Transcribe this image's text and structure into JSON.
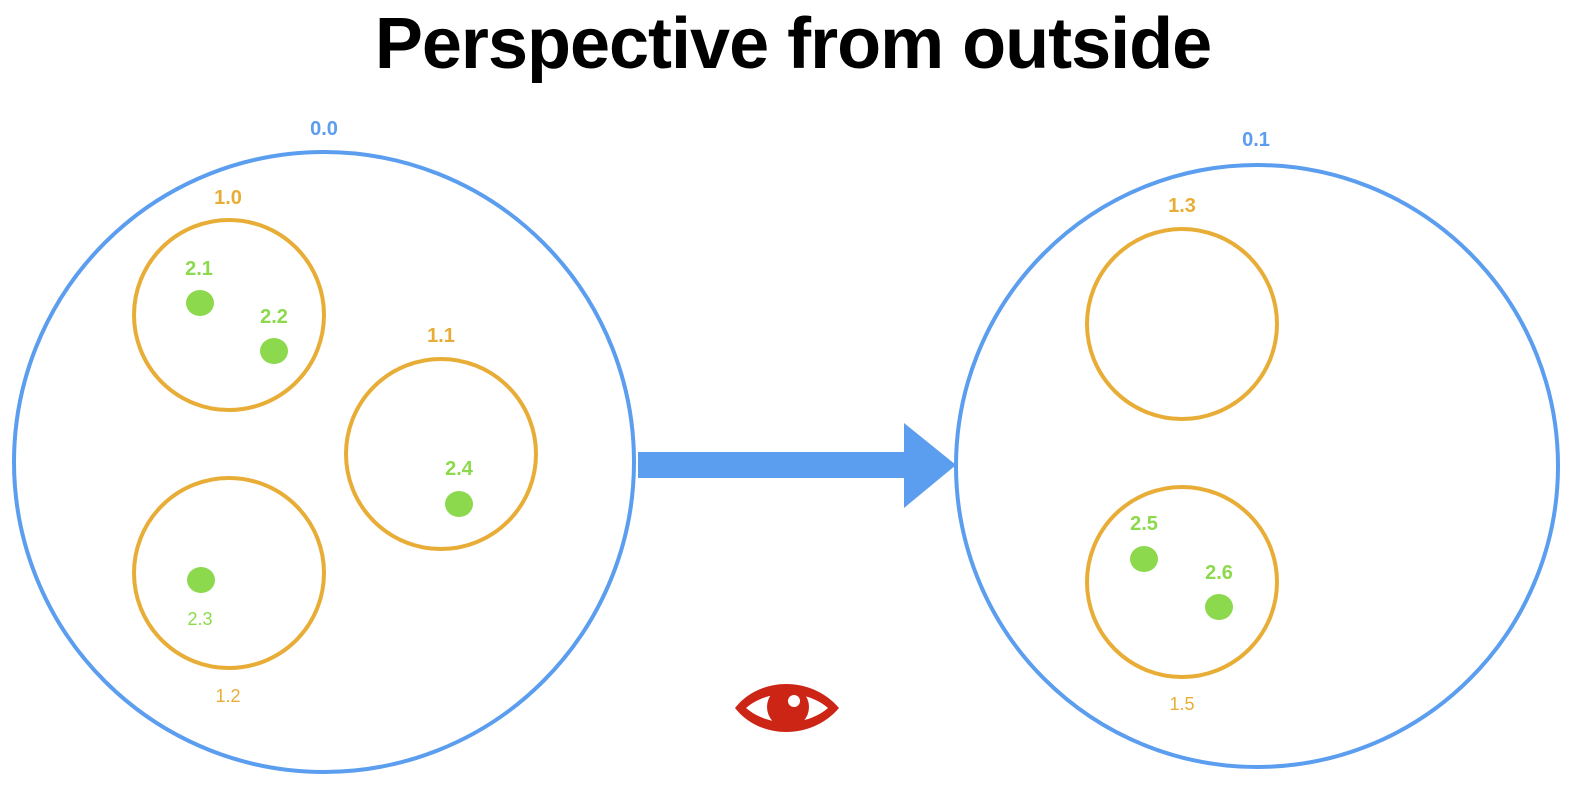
{
  "title": "Perspective from outside",
  "colors": {
    "level0": "#5B9DEE",
    "level1": "#E8AD37",
    "level2": "#8DD94E",
    "arrow": "#5B9DEE",
    "eye": "#CC2516",
    "text": "#000000"
  },
  "before": {
    "label": "0.0",
    "groups": [
      {
        "label": "1.0",
        "members": [
          "2.1",
          "2.2"
        ]
      },
      {
        "label": "1.1",
        "members": [
          "2.4"
        ]
      },
      {
        "label": "1.2",
        "members": [
          "2.3"
        ]
      }
    ]
  },
  "after": {
    "label": "0.1",
    "groups": [
      {
        "label": "1.3",
        "members": []
      },
      {
        "label": "1.5",
        "members": [
          "2.5",
          "2.6"
        ]
      }
    ]
  },
  "arrow_icon": "right-arrow-icon",
  "viewer_icon": "eye-icon"
}
